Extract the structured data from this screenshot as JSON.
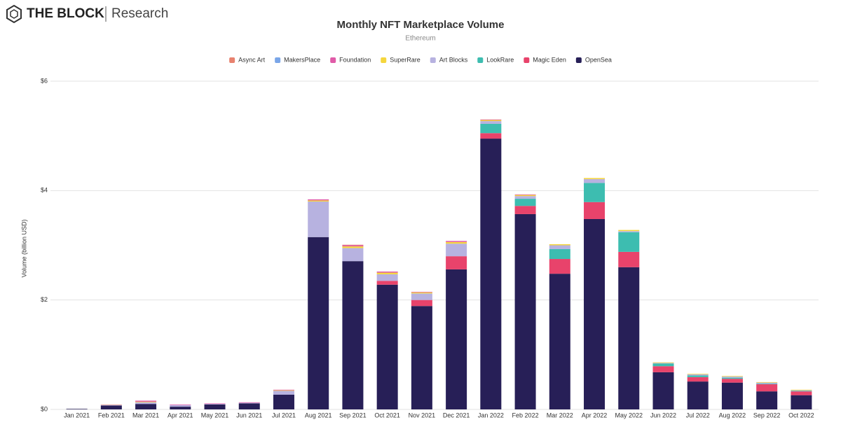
{
  "header": {
    "brand": "THE BLOCK",
    "sub": "Research"
  },
  "chart_data": {
    "type": "stacked_bar",
    "title": "Monthly NFT Marketplace Volume",
    "subtitle": "Ethereum",
    "y_label": "Volume (billion USD)",
    "categories": [
      "Jan 2021",
      "Feb 2021",
      "Mar 2021",
      "Apr 2021",
      "May 2021",
      "Jun 2021",
      "Jul 2021",
      "Aug 2021",
      "Sep 2021",
      "Oct 2021",
      "Nov 2021",
      "Dec 2021",
      "Jan 2022",
      "Feb 2022",
      "Mar 2022",
      "Apr 2022",
      "May 2022",
      "Jun 2022",
      "Jul 2022",
      "Aug 2022",
      "Sep 2022",
      "Oct 2022"
    ],
    "series": [
      {
        "name": "Async Art",
        "color": "#e8826f",
        "values": [
          0,
          0,
          0,
          0,
          0,
          0,
          0,
          0,
          0.01,
          0,
          0,
          0,
          0,
          0,
          0,
          0,
          0,
          0,
          0,
          0,
          0,
          0
        ]
      },
      {
        "name": "MakersPlace",
        "color": "#7aa6e8",
        "values": [
          0,
          0,
          0,
          0,
          0,
          0,
          0,
          0,
          0,
          0,
          0,
          0,
          0,
          0,
          0,
          0,
          0,
          0,
          0,
          0,
          0,
          0
        ]
      },
      {
        "name": "Foundation",
        "color": "#e05ba8",
        "values": [
          0,
          0.005,
          0.02,
          0.01,
          0.01,
          0.01,
          0.01,
          0.02,
          0.02,
          0.02,
          0.01,
          0.02,
          0.01,
          0.01,
          0,
          0,
          0,
          0,
          0,
          0,
          0,
          0
        ]
      },
      {
        "name": "SuperRare",
        "color": "#f5d63d",
        "values": [
          0,
          0.005,
          0.01,
          0,
          0,
          0,
          0.01,
          0.02,
          0.03,
          0.03,
          0.02,
          0.03,
          0.02,
          0.02,
          0.02,
          0.02,
          0.02,
          0.01,
          0.01,
          0.01,
          0.01,
          0.01
        ]
      },
      {
        "name": "Art Blocks",
        "color": "#b7b2e0",
        "values": [
          0,
          0.01,
          0.03,
          0.03,
          0.01,
          0.01,
          0.07,
          0.65,
          0.24,
          0.12,
          0.12,
          0.23,
          0.05,
          0.05,
          0.07,
          0.07,
          0.02,
          0.01,
          0.02,
          0.02,
          0.02,
          0.01
        ]
      },
      {
        "name": "LookRare",
        "color": "#3dbdb0",
        "values": [
          0,
          0,
          0,
          0,
          0,
          0,
          0,
          0,
          0,
          0,
          0,
          0,
          0.17,
          0.13,
          0.18,
          0.35,
          0.36,
          0.05,
          0.03,
          0.02,
          0.01,
          0.01
        ]
      },
      {
        "name": "Magic Eden",
        "color": "#e8436b",
        "values": [
          0,
          0,
          0,
          0,
          0,
          0,
          0,
          0,
          0,
          0.07,
          0.11,
          0.24,
          0.1,
          0.15,
          0.27,
          0.31,
          0.28,
          0.11,
          0.08,
          0.07,
          0.13,
          0.07
        ]
      },
      {
        "name": "OpenSea",
        "color": "#271f57",
        "values": [
          0.01,
          0.07,
          0.1,
          0.05,
          0.09,
          0.11,
          0.27,
          3.15,
          2.71,
          2.28,
          1.89,
          2.56,
          4.95,
          3.57,
          2.48,
          3.48,
          2.6,
          0.68,
          0.51,
          0.49,
          0.33,
          0.26
        ]
      }
    ],
    "ylim": [
      0,
      6
    ],
    "yticks": [
      {
        "value": 0,
        "label": "$0"
      },
      {
        "value": 2,
        "label": "$2"
      },
      {
        "value": 4,
        "label": "$4"
      },
      {
        "value": 6,
        "label": "$6"
      }
    ],
    "grid": true
  }
}
